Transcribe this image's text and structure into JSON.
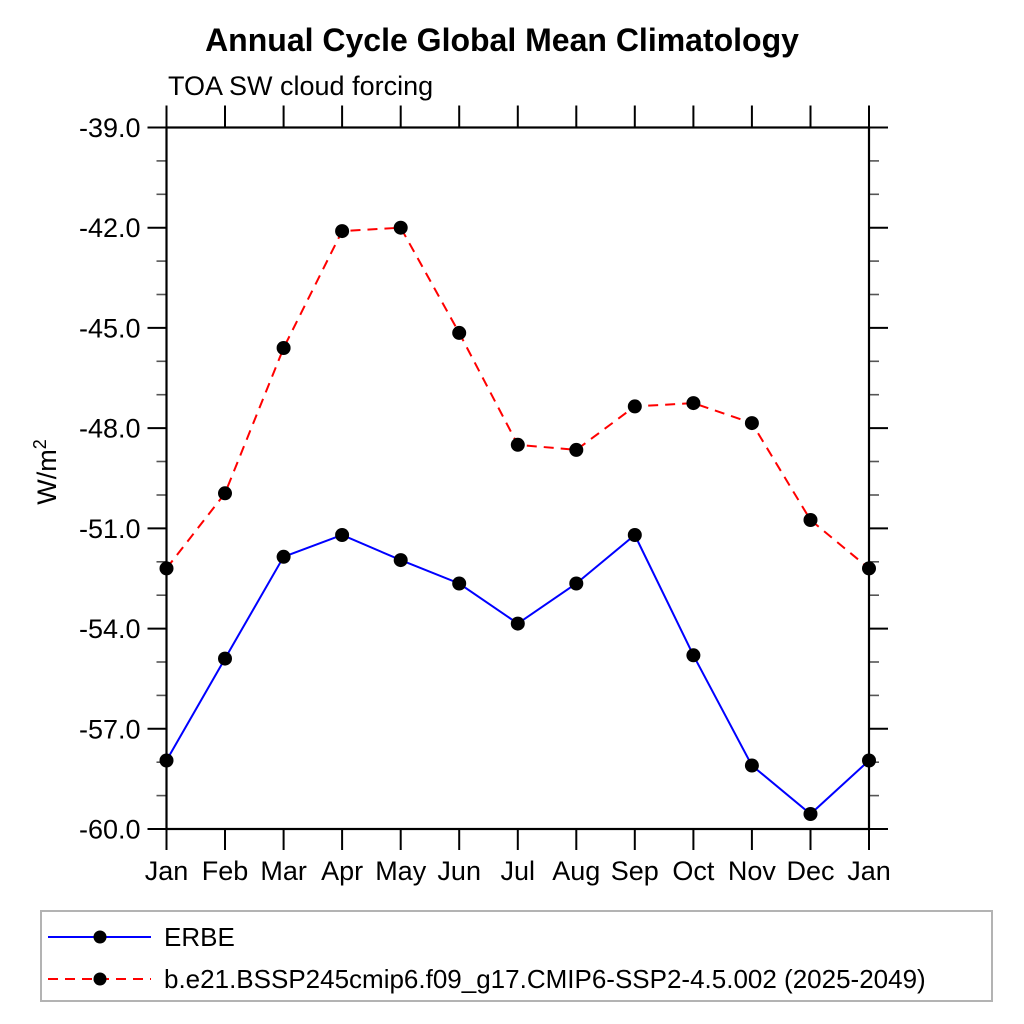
{
  "chart_data": {
    "type": "line",
    "title": "Annual Cycle Global Mean Climatology",
    "subtitle": "TOA SW cloud forcing",
    "ylabel_prefix": "W/m",
    "ylabel_sup": "2",
    "categories": [
      "Jan",
      "Feb",
      "Mar",
      "Apr",
      "May",
      "Jun",
      "Jul",
      "Aug",
      "Sep",
      "Oct",
      "Nov",
      "Dec",
      "Jan"
    ],
    "ylim": [
      -60.0,
      -39.0
    ],
    "y_major_ticks": [
      -39,
      -42,
      -45,
      -48,
      -51,
      -54,
      -57,
      -60
    ],
    "y_major_tick_labels": [
      "-39.0",
      "-42.0",
      "-45.0",
      "-48.0",
      "-51.0",
      "-54.0",
      "-57.0",
      "-60.0"
    ],
    "y_minor_step": 1.0,
    "grid": false,
    "legend_position": "bottom",
    "marker": "filled-circle",
    "marker_color": "#000000",
    "axis_color": "#000000",
    "series": [
      {
        "name": "ERBE",
        "color": "#0000ff",
        "style": "solid",
        "values": [
          -57.95,
          -54.9,
          -51.85,
          -51.2,
          -51.95,
          -52.65,
          -53.85,
          -52.65,
          -51.2,
          -54.8,
          -58.1,
          -59.55,
          -57.95
        ]
      },
      {
        "name": "b.e21.BSSP245cmip6.f09_g17.CMIP6-SSP2-4.5.002 (2025-2049)",
        "color": "#ff0000",
        "style": "dashed",
        "values": [
          -52.2,
          -49.95,
          -45.6,
          -42.1,
          -42.0,
          -45.15,
          -48.5,
          -48.65,
          -47.35,
          -47.25,
          -47.85,
          -50.75,
          -52.2
        ]
      }
    ]
  }
}
